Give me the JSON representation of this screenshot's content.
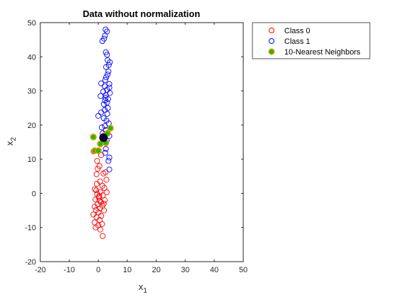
{
  "chart_data": {
    "type": "scatter",
    "title": "Data without normalization",
    "xlabel": "x",
    "xlabel_sub": "1",
    "ylabel": "x",
    "ylabel_sub": "2",
    "xlim": [
      -20,
      50
    ],
    "ylim": [
      -20,
      50
    ],
    "xticks": [
      -20,
      -10,
      0,
      10,
      20,
      30,
      40,
      50
    ],
    "yticks": [
      -20,
      -10,
      0,
      10,
      20,
      30,
      40,
      50
    ],
    "grid": false,
    "legend_position": "outside-top-right",
    "series": [
      {
        "name": "Class 0",
        "marker": "open-circle",
        "color": "#ff0000",
        "points": [
          [
            -0.8,
            12.5
          ],
          [
            0.2,
            12.5
          ],
          [
            1.0,
            11.2
          ],
          [
            -0.4,
            9.5
          ],
          [
            0.4,
            8.0
          ],
          [
            -0.2,
            7.2
          ],
          [
            1.8,
            5.8
          ],
          [
            -0.6,
            5.6
          ],
          [
            2.5,
            6.2
          ],
          [
            0.6,
            3.5
          ],
          [
            -0.5,
            2.8
          ],
          [
            1.4,
            2.2
          ],
          [
            2.1,
            1.6
          ],
          [
            -1.2,
            1.2
          ],
          [
            0.7,
            0.4
          ],
          [
            2.9,
            0.3
          ],
          [
            -0.4,
            -0.2
          ],
          [
            1.6,
            -0.6
          ],
          [
            0.2,
            -1.2
          ],
          [
            -1.0,
            -1.8
          ],
          [
            2.2,
            -2.0
          ],
          [
            0.9,
            -2.6
          ],
          [
            -0.2,
            -3.2
          ],
          [
            1.4,
            -3.6
          ],
          [
            -1.3,
            -3.9
          ],
          [
            0.6,
            -4.4
          ],
          [
            -0.8,
            -4.9
          ],
          [
            2.0,
            -5.0
          ],
          [
            0.1,
            -5.6
          ],
          [
            -1.7,
            -6.2
          ],
          [
            1.0,
            -6.6
          ],
          [
            -0.6,
            -7.0
          ],
          [
            0.5,
            -7.8
          ],
          [
            -1.3,
            -8.5
          ],
          [
            1.3,
            -9.0
          ],
          [
            0.0,
            -9.4
          ],
          [
            -0.9,
            -10.0
          ],
          [
            0.7,
            -10.6
          ],
          [
            1.5,
            -12.5
          ],
          [
            -1.6,
            12.3
          ],
          [
            2.8,
            4.0
          ],
          [
            0.3,
            -0.8
          ],
          [
            -0.7,
            0.9
          ],
          [
            1.9,
            -3.0
          ],
          [
            0.4,
            -2.1
          ]
        ]
      },
      {
        "name": "Class 1",
        "marker": "open-circle",
        "color": "#0000ff",
        "points": [
          [
            2.5,
            48.0
          ],
          [
            3.0,
            47.4
          ],
          [
            2.3,
            46.2
          ],
          [
            2.0,
            45.3
          ],
          [
            1.4,
            44.6
          ],
          [
            2.6,
            41.3
          ],
          [
            3.0,
            40.6
          ],
          [
            3.2,
            39.0
          ],
          [
            4.0,
            38.4
          ],
          [
            3.6,
            37.6
          ],
          [
            2.7,
            37.0
          ],
          [
            3.5,
            35.7
          ],
          [
            3.2,
            34.8
          ],
          [
            2.7,
            34.0
          ],
          [
            2.4,
            33.2
          ],
          [
            1.0,
            32.2
          ],
          [
            3.8,
            32.0
          ],
          [
            2.2,
            31.4
          ],
          [
            3.0,
            30.3
          ],
          [
            1.7,
            29.8
          ],
          [
            4.0,
            29.4
          ],
          [
            0.8,
            28.5
          ],
          [
            2.5,
            28.0
          ],
          [
            3.4,
            27.6
          ],
          [
            2.3,
            27.2
          ],
          [
            3.0,
            26.6
          ],
          [
            1.9,
            26.1
          ],
          [
            3.3,
            25.0
          ],
          [
            2.2,
            24.4
          ],
          [
            1.0,
            23.7
          ],
          [
            3.1,
            23.3
          ],
          [
            0.0,
            22.7
          ],
          [
            1.9,
            22.0
          ],
          [
            2.8,
            21.3
          ],
          [
            3.6,
            20.5
          ],
          [
            2.3,
            19.7
          ],
          [
            1.2,
            19.3
          ],
          [
            2.6,
            18.5
          ],
          [
            1.5,
            17.6
          ],
          [
            3.8,
            16.8
          ],
          [
            2.9,
            15.5
          ],
          [
            2.6,
            13.0
          ],
          [
            2.4,
            11.9
          ],
          [
            3.8,
            10.5
          ],
          [
            3.5,
            9.5
          ],
          [
            3.8,
            7.0
          ],
          [
            2.6,
            28.8
          ],
          [
            3.8,
            31.0
          ]
        ]
      },
      {
        "name": "10-Nearest Neighbors",
        "marker": "filled-circle",
        "color": "#00c800",
        "edgecolor": "#ff8c00",
        "points": [
          [
            -1.7,
            16.5
          ],
          [
            -1.2,
            12.5
          ],
          [
            0.0,
            12.5
          ],
          [
            0.7,
            14.5
          ],
          [
            2.6,
            14.8
          ],
          [
            1.7,
            16.0
          ],
          [
            1.5,
            16.6
          ],
          [
            2.0,
            16.9
          ],
          [
            3.2,
            17.6
          ],
          [
            4.2,
            19.1
          ]
        ]
      }
    ],
    "query_point": {
      "point": [
        1.8,
        16.3
      ],
      "color": "#00004d"
    }
  }
}
